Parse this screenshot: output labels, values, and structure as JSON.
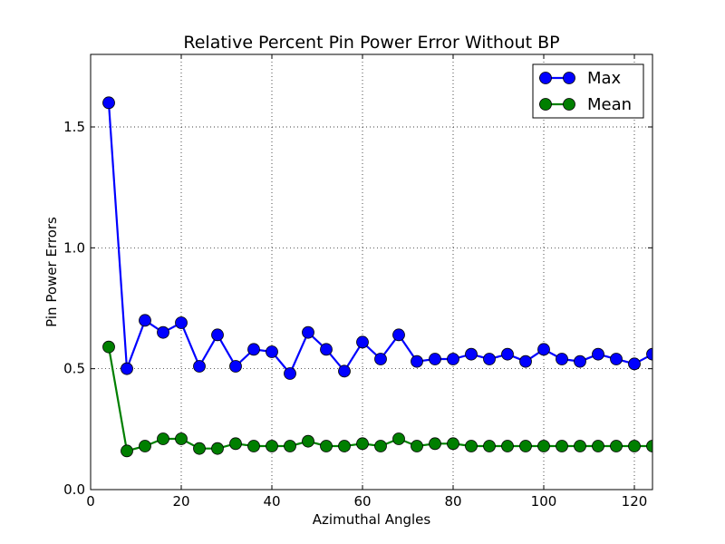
{
  "chart_data": {
    "type": "line",
    "title": "Relative Percent Pin Power Error Without BP",
    "xlabel": "Azimuthal Angles",
    "ylabel": "Pin Power Errors",
    "xlim": [
      0,
      124
    ],
    "ylim": [
      0,
      1.8
    ],
    "xticks": [
      0,
      20,
      40,
      60,
      80,
      100,
      120
    ],
    "yticks": [
      0.0,
      0.5,
      1.0,
      1.5
    ],
    "xtick_labels": [
      "0",
      "20",
      "40",
      "60",
      "80",
      "100",
      "120"
    ],
    "ytick_labels": [
      "0.0",
      "0.5",
      "1.0",
      "1.5"
    ],
    "grid": true,
    "legend_position": "top-right",
    "x": [
      4,
      8,
      12,
      16,
      20,
      24,
      28,
      32,
      36,
      40,
      44,
      48,
      52,
      56,
      60,
      64,
      68,
      72,
      76,
      80,
      84,
      88,
      92,
      96,
      100,
      104,
      108,
      112,
      116,
      120,
      124
    ],
    "series": [
      {
        "name": "Max",
        "color": "#0000ff",
        "marker_color": "#0000ff",
        "values": [
          1.6,
          0.5,
          0.7,
          0.65,
          0.69,
          0.51,
          0.64,
          0.51,
          0.58,
          0.57,
          0.48,
          0.65,
          0.58,
          0.49,
          0.61,
          0.54,
          0.64,
          0.53,
          0.54,
          0.54,
          0.56,
          0.54,
          0.56,
          0.53,
          0.58,
          0.54,
          0.53,
          0.56,
          0.54,
          0.52,
          0.56
        ]
      },
      {
        "name": "Mean",
        "color": "#007f00",
        "marker_color": "#007f00",
        "values": [
          0.59,
          0.16,
          0.18,
          0.21,
          0.21,
          0.17,
          0.17,
          0.19,
          0.18,
          0.18,
          0.18,
          0.2,
          0.18,
          0.18,
          0.19,
          0.18,
          0.21,
          0.18,
          0.19,
          0.19,
          0.18,
          0.18,
          0.18,
          0.18,
          0.18,
          0.18,
          0.18,
          0.18,
          0.18,
          0.18,
          0.18
        ]
      }
    ]
  }
}
